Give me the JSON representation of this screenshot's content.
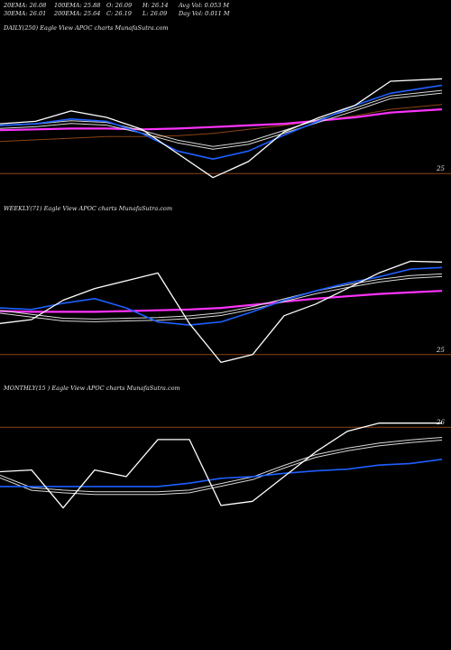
{
  "stats": {
    "line1": [
      "20EMA: 26.08",
      "100EMA: 25.88",
      "O: 26.09",
      "H: 26.14",
      "Avg Vol: 0.053 M"
    ],
    "line2": [
      "30EMA: 26.01",
      "200EMA: 25.64",
      "C: 26.19",
      "L: 26.09",
      "Day Vol: 0.011 M"
    ]
  },
  "colors": {
    "background": "#000000",
    "price": "#ffffff",
    "ema_fast": "#1e5fff",
    "ema_white": "#d8d8d8",
    "ema_slow": "#ff33ff",
    "ema_brown": "#8b4513",
    "ref_line": "#8b4513"
  },
  "chart_data": [
    {
      "type": "line",
      "label": "DAILY(250) Eagle   View  APOC charts MunafaSutra.com",
      "ref_line": {
        "value": 25,
        "label": "25"
      },
      "ylim": [
        24.8,
        26.6
      ],
      "x": [
        0,
        20,
        40,
        60,
        80,
        100,
        120,
        140,
        160,
        180,
        200,
        220,
        249
      ],
      "series": [
        {
          "role": "price",
          "values": [
            25.62,
            25.65,
            25.78,
            25.7,
            25.55,
            25.25,
            24.95,
            25.15,
            25.52,
            25.7,
            25.85,
            26.15,
            26.18
          ]
        },
        {
          "role": "ema_fast",
          "values": [
            25.6,
            25.62,
            25.68,
            25.65,
            25.5,
            25.28,
            25.18,
            25.28,
            25.48,
            25.66,
            25.85,
            26.0,
            26.1
          ]
        },
        {
          "role": "ema_white",
          "values": [
            25.58,
            25.6,
            25.64,
            25.62,
            25.52,
            25.4,
            25.32,
            25.38,
            25.52,
            25.66,
            25.8,
            25.95,
            26.02
          ]
        },
        {
          "role": "ema_slow",
          "values": [
            25.54,
            25.55,
            25.56,
            25.56,
            25.55,
            25.56,
            25.58,
            25.6,
            25.62,
            25.66,
            25.7,
            25.76,
            25.8
          ]
        },
        {
          "role": "ema_brown",
          "values": [
            25.4,
            25.42,
            25.44,
            25.46,
            25.46,
            25.47,
            25.5,
            25.55,
            25.6,
            25.66,
            25.72,
            25.8,
            25.86
          ]
        }
      ]
    },
    {
      "type": "line",
      "label": "WEEKLY(71) Eagle   View  APOC charts MunafaSutra.com",
      "ref_line": {
        "value": 25,
        "label": "25"
      },
      "ylim": [
        24.8,
        26.6
      ],
      "x": [
        0,
        5,
        10,
        15,
        20,
        25,
        30,
        35,
        40,
        45,
        50,
        55,
        60,
        65,
        70
      ],
      "series": [
        {
          "role": "price",
          "values": [
            25.4,
            25.45,
            25.7,
            25.85,
            25.95,
            26.05,
            25.4,
            24.9,
            25.0,
            25.5,
            25.65,
            25.85,
            26.05,
            26.2,
            26.19
          ]
        },
        {
          "role": "ema_fast",
          "values": [
            25.6,
            25.58,
            25.66,
            25.72,
            25.6,
            25.42,
            25.38,
            25.42,
            25.55,
            25.7,
            25.82,
            25.92,
            26.0,
            26.1,
            26.12
          ]
        },
        {
          "role": "ema_white",
          "values": [
            25.55,
            25.5,
            25.45,
            25.44,
            25.45,
            25.46,
            25.48,
            25.52,
            25.6,
            25.7,
            25.8,
            25.88,
            25.95,
            26.0,
            26.02
          ]
        },
        {
          "role": "ema_slow",
          "values": [
            25.56,
            25.55,
            25.55,
            25.55,
            25.56,
            25.57,
            25.58,
            25.6,
            25.64,
            25.68,
            25.72,
            25.75,
            25.78,
            25.8,
            25.82
          ]
        }
      ]
    },
    {
      "type": "line",
      "label": "MONTHLY(15                    ) Eagle   View  APOC charts MunafaSutra.com",
      "ref_line": {
        "value": 26,
        "label": "26"
      },
      "ylim": [
        24.5,
        26.2
      ],
      "x": [
        0,
        1,
        2,
        3,
        4,
        5,
        6,
        7,
        8,
        9,
        10,
        11,
        12,
        13,
        14
      ],
      "series": [
        {
          "role": "price",
          "values": [
            25.46,
            25.48,
            25.02,
            25.48,
            25.4,
            25.85,
            25.85,
            25.05,
            25.1,
            25.4,
            25.7,
            25.95,
            26.05,
            26.05,
            26.05
          ]
        },
        {
          "role": "ema_fast",
          "values": [
            25.28,
            25.28,
            25.28,
            25.28,
            25.28,
            25.28,
            25.32,
            25.38,
            25.4,
            25.44,
            25.47,
            25.49,
            25.54,
            25.56,
            25.61
          ]
        },
        {
          "role": "ema_white",
          "values": [
            25.4,
            25.25,
            25.22,
            25.2,
            25.2,
            25.2,
            25.22,
            25.3,
            25.38,
            25.52,
            25.65,
            25.73,
            25.79,
            25.83,
            25.86
          ]
        }
      ]
    }
  ]
}
